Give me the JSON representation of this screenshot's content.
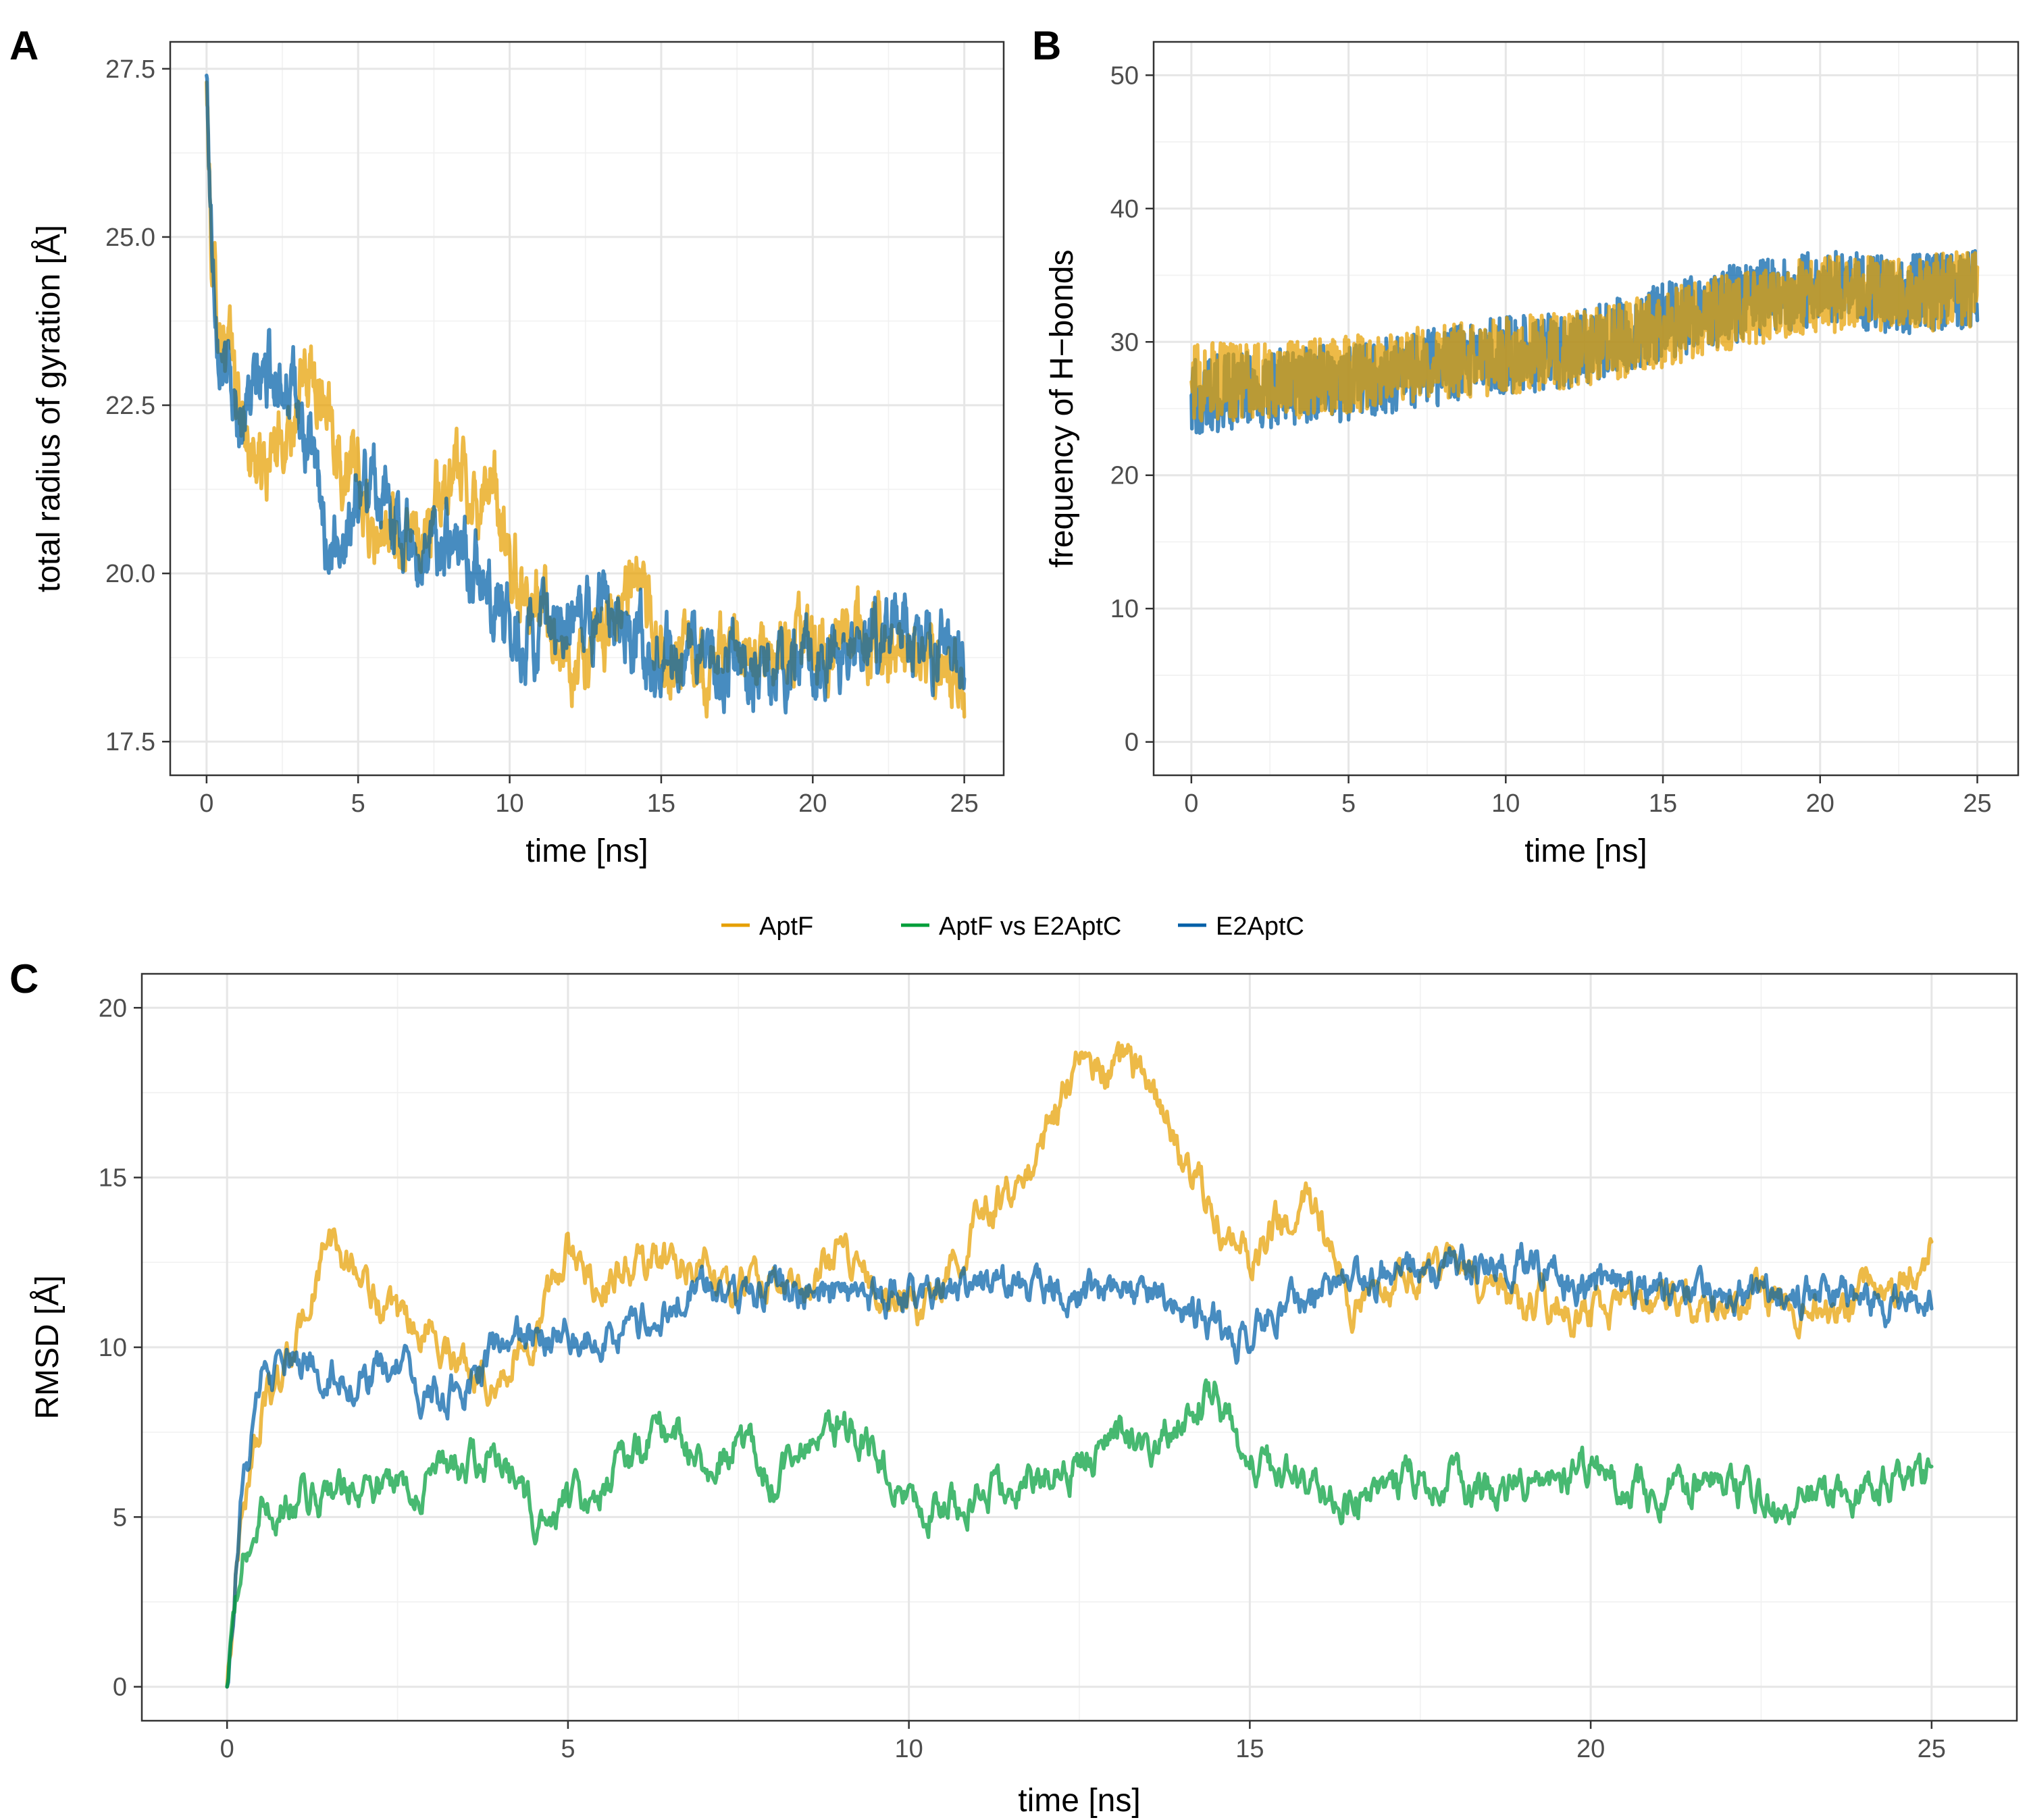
{
  "colors": {
    "AptF": "#E69F00",
    "AptF vs E2AptC": "#009E3A",
    "E2AptC": "#0060A8"
  },
  "legend": {
    "items": [
      "AptF",
      "AptF vs E2AptC",
      "E2AptC"
    ]
  },
  "chart_data": [
    {
      "panel": "A",
      "type": "line",
      "xlabel": "time [ns]",
      "ylabel": "total radius of gyration [Å]",
      "xlim": [
        -1.2,
        26.3
      ],
      "ylim": [
        17.0,
        27.9
      ],
      "xticks": [
        0,
        5,
        10,
        15,
        20,
        25
      ],
      "yticks": [
        17.5,
        20.0,
        22.5,
        25.0,
        27.5
      ],
      "ytick_labels": [
        "17.5",
        "20.0",
        "22.5",
        "25.0",
        "27.5"
      ],
      "noise": 0.7,
      "series": [
        {
          "name": "AptF",
          "x": [
            0,
            0.15,
            0.4,
            0.8,
            1.2,
            1.6,
            2.0,
            2.5,
            3.0,
            3.5,
            4.0,
            4.5,
            5.0,
            5.5,
            6.0,
            6.5,
            7.0,
            7.5,
            8.0,
            8.5,
            9.0,
            9.5,
            10.0,
            10.5,
            11.0,
            11.5,
            12.0,
            12.5,
            13.0,
            13.5,
            14.0,
            14.5,
            15.0,
            15.5,
            16.0,
            16.5,
            17.0,
            17.5,
            18.0,
            18.5,
            19.0,
            19.5,
            20.0,
            20.5,
            21.0,
            21.5,
            22.0,
            22.5,
            23.0,
            23.5,
            24.0,
            24.5,
            25.0
          ],
          "y": [
            27.3,
            24.8,
            23.8,
            23.2,
            22.2,
            21.7,
            21.5,
            22.0,
            22.6,
            22.9,
            22.7,
            21.6,
            21.3,
            20.4,
            20.7,
            20.3,
            20.6,
            20.9,
            21.3,
            21.5,
            21.1,
            21.2,
            20.1,
            19.8,
            19.6,
            19.1,
            18.6,
            18.5,
            19.0,
            19.6,
            20.1,
            19.4,
            18.9,
            18.8,
            18.7,
            18.7,
            18.8,
            18.8,
            18.6,
            18.7,
            18.8,
            18.9,
            18.9,
            18.9,
            18.9,
            19.0,
            19.0,
            18.9,
            18.8,
            18.7,
            18.8,
            18.7,
            18.2
          ]
        },
        {
          "name": "E2AptC",
          "x": [
            0,
            0.15,
            0.4,
            0.8,
            1.2,
            1.6,
            2.0,
            2.5,
            3.0,
            3.5,
            4.0,
            4.5,
            5.0,
            5.5,
            6.0,
            6.5,
            7.0,
            7.5,
            8.0,
            8.5,
            9.0,
            9.5,
            10.0,
            10.5,
            11.0,
            11.5,
            12.0,
            12.5,
            13.0,
            13.5,
            14.0,
            14.5,
            15.0,
            15.5,
            16.0,
            16.5,
            17.0,
            17.5,
            18.0,
            18.5,
            19.0,
            19.5,
            20.0,
            20.5,
            21.0,
            21.5,
            22.0,
            22.5,
            23.0,
            23.5,
            24.0,
            24.5,
            25.0
          ],
          "y": [
            27.4,
            25.2,
            23.6,
            22.6,
            22.4,
            22.7,
            23.0,
            23.1,
            22.4,
            21.6,
            20.4,
            20.6,
            21.1,
            21.5,
            20.9,
            20.7,
            20.3,
            20.4,
            20.6,
            20.3,
            20.1,
            19.7,
            19.2,
            19.1,
            19.1,
            18.9,
            19.2,
            19.3,
            19.5,
            19.7,
            19.2,
            18.9,
            18.7,
            18.7,
            18.8,
            18.7,
            18.5,
            18.6,
            18.4,
            18.5,
            18.5,
            18.6,
            18.7,
            18.9,
            18.8,
            18.9,
            19.0,
            19.2,
            19.2,
            18.9,
            18.9,
            18.8,
            18.6
          ]
        }
      ]
    },
    {
      "panel": "B",
      "type": "line",
      "xlabel": "time [ns]",
      "ylabel": "frequency of H−bonds",
      "xlim": [
        -1.2,
        26.3
      ],
      "ylim": [
        -2.5,
        52.5
      ],
      "xticks": [
        0,
        5,
        10,
        15,
        20,
        25
      ],
      "yticks": [
        0,
        10,
        20,
        30,
        40,
        50
      ],
      "ytick_labels": [
        "0",
        "10",
        "20",
        "30",
        "40",
        "50"
      ],
      "noise": 4.5,
      "series": [
        {
          "name": "E2AptC",
          "x": [
            0,
            2.5,
            5,
            7.5,
            10,
            12.5,
            15,
            17.5,
            20,
            22.5,
            25
          ],
          "y": [
            26,
            26.5,
            27,
            28,
            29,
            29.5,
            31.5,
            33,
            34,
            33.5,
            34
          ]
        },
        {
          "name": "AptF",
          "x": [
            0,
            2.5,
            5,
            7.5,
            10,
            12.5,
            15,
            17.5,
            20,
            22.5,
            25
          ],
          "y": [
            27,
            27,
            27.5,
            28.5,
            29,
            29.5,
            31,
            32.5,
            33.5,
            33.5,
            34
          ]
        }
      ]
    },
    {
      "panel": "C",
      "type": "line",
      "xlabel": "time [ns]",
      "ylabel": "RMSD [Å]",
      "xlim": [
        -1.25,
        26.25
      ],
      "ylim": [
        -1.0,
        21.0
      ],
      "xticks": [
        0,
        5,
        10,
        15,
        20,
        25
      ],
      "yticks": [
        0,
        5,
        10,
        15,
        20
      ],
      "ytick_labels": [
        "0",
        "5",
        "10",
        "15",
        "20"
      ],
      "noise": 0.8,
      "series": [
        {
          "name": "AptF",
          "x": [
            0,
            0.2,
            0.5,
            1.0,
            1.5,
            2.0,
            2.5,
            3.0,
            3.5,
            4.0,
            4.5,
            5.0,
            5.5,
            6.0,
            6.5,
            7.0,
            7.5,
            8.0,
            8.5,
            9.0,
            9.5,
            10.0,
            10.5,
            11.0,
            11.5,
            12.0,
            12.5,
            13.0,
            13.5,
            14.0,
            14.5,
            15.0,
            15.5,
            16.0,
            16.5,
            17.0,
            17.5,
            18.0,
            18.5,
            19.0,
            19.5,
            20.0,
            20.5,
            21.0,
            21.5,
            22.0,
            22.5,
            23.0,
            23.5,
            24.0,
            24.5,
            25.0
          ],
          "y": [
            0,
            5,
            8,
            10,
            13.2,
            12.0,
            10.5,
            10.5,
            9.5,
            9.0,
            10.5,
            12.8,
            11.8,
            12.5,
            12.5,
            12.5,
            11.8,
            12.0,
            11.5,
            13.0,
            12.0,
            10.8,
            12.0,
            14.0,
            14.5,
            16.2,
            18.5,
            18.2,
            18.0,
            15.8,
            13.8,
            12.5,
            14.0,
            14.0,
            11.3,
            11.8,
            12.3,
            12.1,
            11.8,
            11.4,
            11.3,
            11.0,
            11.3,
            11.5,
            11.4,
            11.3,
            11.3,
            11.4,
            11.3,
            11.6,
            11.8,
            12.9
          ]
        },
        {
          "name": "E2AptC",
          "x": [
            0,
            0.2,
            0.5,
            1.0,
            1.5,
            2.0,
            2.5,
            3.0,
            3.5,
            4.0,
            4.5,
            5.0,
            5.5,
            6.0,
            6.5,
            7.0,
            7.5,
            8.0,
            8.5,
            9.0,
            9.5,
            10.0,
            10.5,
            11.0,
            11.5,
            12.0,
            12.5,
            13.0,
            13.5,
            14.0,
            14.5,
            15.0,
            15.5,
            16.0,
            16.5,
            17.0,
            17.5,
            18.0,
            18.5,
            19.0,
            19.5,
            20.0,
            20.5,
            21.0,
            21.5,
            22.0,
            22.5,
            23.0,
            23.5,
            24.0,
            24.5,
            25.0
          ],
          "y": [
            0,
            5.5,
            8.8,
            9.5,
            9.3,
            9.0,
            9.4,
            8.4,
            8.9,
            10.0,
            10.2,
            10.3,
            10.4,
            10.5,
            11.3,
            11.8,
            11.4,
            12.0,
            11.6,
            11.1,
            11.5,
            11.6,
            11.8,
            11.9,
            11.7,
            11.9,
            11.8,
            11.5,
            11.8,
            11.0,
            10.8,
            10.2,
            11.2,
            11.6,
            11.8,
            12.3,
            12.5,
            12.4,
            12.3,
            12.5,
            12.1,
            11.8,
            11.7,
            11.7,
            11.9,
            11.4,
            11.6,
            11.4,
            11.7,
            11.4,
            11.2,
            11.8
          ]
        },
        {
          "name": "AptF vs E2AptC",
          "x": [
            0,
            0.2,
            0.5,
            1.0,
            1.5,
            2.0,
            2.5,
            3.0,
            3.5,
            4.0,
            4.5,
            5.0,
            5.5,
            6.0,
            6.5,
            7.0,
            7.5,
            8.0,
            8.5,
            9.0,
            9.5,
            10.0,
            10.5,
            11.0,
            11.5,
            12.0,
            12.5,
            13.0,
            13.5,
            14.0,
            14.5,
            15.0,
            15.5,
            16.0,
            16.5,
            17.0,
            17.5,
            18.0,
            18.5,
            19.0,
            19.5,
            20.0,
            20.5,
            21.0,
            21.5,
            22.0,
            22.5,
            23.0,
            23.5,
            24.0,
            24.5,
            25.0
          ],
          "y": [
            0,
            3.5,
            5.0,
            5.5,
            5.8,
            6.0,
            5.8,
            6.3,
            6.5,
            6.7,
            5.0,
            5.5,
            6.0,
            7.2,
            7.5,
            6.5,
            7.5,
            6.2,
            7.0,
            7.8,
            7.0,
            5.2,
            5.5,
            5.7,
            6.0,
            6.3,
            6.5,
            7.5,
            7.0,
            8.0,
            8.8,
            6.5,
            6.2,
            5.5,
            5.7,
            5.8,
            6.2,
            6.0,
            5.8,
            6.0,
            6.2,
            6.5,
            6.0,
            5.8,
            6.0,
            5.8,
            5.6,
            5.5,
            5.6,
            5.8,
            6.0,
            6.2
          ]
        }
      ]
    }
  ]
}
